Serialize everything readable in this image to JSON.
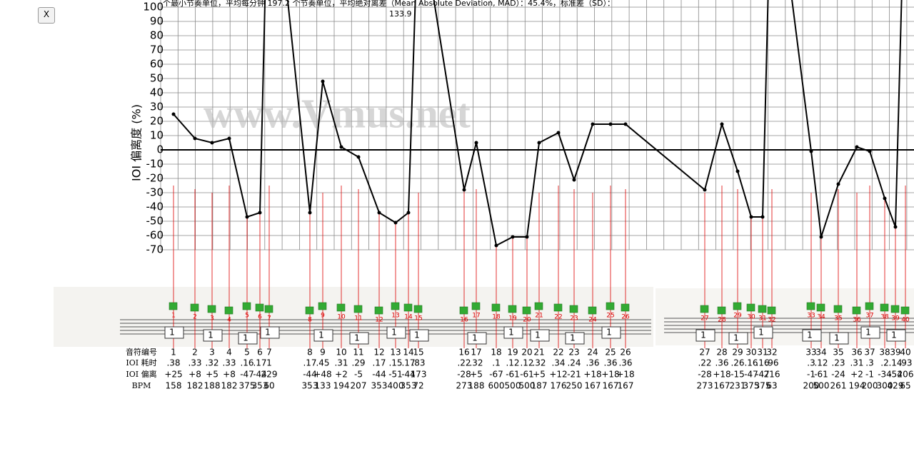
{
  "close_button": "X",
  "score_inputs": [
    "1",
    "1",
    "1",
    "1",
    "1",
    "1",
    "1",
    "1",
    "1",
    "1",
    "1",
    "1",
    "1",
    "1",
    "1",
    "1",
    "1",
    "1",
    "1",
    "1"
  ],
  "table": {
    "row_labels": [
      "音符编号",
      "IOI 耗时",
      "IOI 偏离",
      "BPM"
    ],
    "ioi_times": [
      ".38",
      ".33",
      ".32",
      ".33",
      ".16",
      ".17",
      "1",
      ".17",
      ".45",
      ".31",
      ".29",
      ".17",
      ".15",
      ".17",
      ".83",
      ".22",
      ".32",
      ".1",
      ".12",
      ".12",
      ".32",
      ".34",
      ".24",
      ".36",
      ".36",
      ".36",
      ".22",
      ".36",
      ".26",
      ".16",
      ".16",
      ".96",
      ".3",
      ".12",
      ".23",
      ".31",
      ".3",
      ".2",
      ".14",
      ".93"
    ],
    "bpm": [
      "158",
      "182",
      "188",
      "182",
      "375",
      "353",
      "60",
      "353",
      "133",
      "194",
      "207",
      "353",
      "400",
      "353",
      "72",
      "273",
      "188",
      "600",
      "500",
      "500",
      "187",
      "176",
      "250",
      "167",
      "167",
      "167",
      "273",
      "167",
      "231",
      "375",
      "375",
      "63",
      "200",
      "500",
      "261",
      "194",
      "200",
      "300",
      "429",
      "65"
    ]
  },
  "chart_data": {
    "type": "line",
    "title": "个最小节奏单位，平均每分钟 197.2 个节奏单位，平均绝对离差（Mean Absolute Deviation, MAD）：45.4%，标准差（SD）：",
    "annotation": "133.9",
    "watermark": "www.Vmus.net",
    "y_label": "IOI 偏离度 (%)",
    "categories": [
      "1",
      "2",
      "3",
      "4",
      "5",
      "6",
      "7",
      "8",
      "9",
      "10",
      "11",
      "12",
      "13",
      "14",
      "15",
      "16",
      "17",
      "18",
      "19",
      "20",
      "21",
      "22",
      "23",
      "24",
      "25",
      "26",
      "27",
      "28",
      "29",
      "30",
      "31",
      "32",
      "33",
      "34",
      "35",
      "36",
      "37",
      "38",
      "39",
      "40"
    ],
    "series": [
      {
        "name": "IOI 偏离",
        "color": "#000000",
        "values": [
          25,
          8,
          5,
          8,
          -47,
          -44,
          229,
          -44,
          48,
          2,
          -5,
          -44,
          -51,
          -44,
          173,
          -28,
          5,
          -67,
          -61,
          -61,
          5,
          12,
          -21,
          18,
          18,
          18,
          -28,
          18,
          -15,
          -47,
          -47,
          216,
          -1,
          -61,
          -24,
          2,
          -1,
          -34,
          -54,
          206
        ],
        "value_labels": [
          "+25",
          "+8",
          "+5",
          "+8",
          "-47",
          "-44",
          "229",
          "-44",
          "+48",
          "+2",
          "-5",
          "-44",
          "-51",
          "-44",
          "173",
          "-28",
          "+5",
          "-67",
          "-61",
          "-61",
          "+5",
          "+12",
          "-21",
          "+18",
          "+18",
          "+18",
          "-28",
          "+18",
          "-15",
          "-47",
          "-47",
          "216",
          "-1",
          "-61",
          "-24",
          "+2",
          "-1",
          "-34",
          "-54",
          "206"
        ]
      }
    ],
    "ylim": [
      -70,
      105
    ],
    "yticks": [
      100,
      90,
      80,
      70,
      60,
      50,
      40,
      30,
      20,
      10,
      0,
      -10,
      -20,
      -30,
      -40,
      -50,
      -60,
      -70
    ],
    "grid": true
  }
}
